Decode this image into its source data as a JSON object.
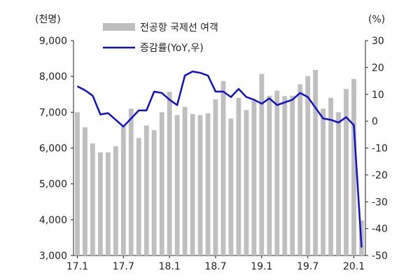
{
  "chart_data": {
    "type": "bar+line",
    "x": [
      "17.1",
      "17.2",
      "17.3",
      "17.4",
      "17.5",
      "17.6",
      "17.7",
      "17.8",
      "17.9",
      "17.10",
      "17.11",
      "17.12",
      "18.1",
      "18.2",
      "18.3",
      "18.4",
      "18.5",
      "18.6",
      "18.7",
      "18.8",
      "18.9",
      "18.10",
      "18.11",
      "18.12",
      "19.1",
      "19.2",
      "19.3",
      "19.4",
      "19.5",
      "19.6",
      "19.7",
      "19.8",
      "19.9",
      "19.10",
      "19.11",
      "19.12",
      "20.1",
      "20.2"
    ],
    "x_tick_labels": [
      "17.1",
      "17.7",
      "18.1",
      "18.7",
      "19.1",
      "19.7",
      "20.1"
    ],
    "y_left_unit": "(천명)",
    "y_right_unit": "(%)",
    "y_left_ticks": [
      "9,000",
      "8,000",
      "7,000",
      "6,000",
      "5,000",
      "4,000",
      "3,000"
    ],
    "y_right_ticks": [
      "30",
      "20",
      "10",
      "0",
      "-10",
      "-20",
      "-30",
      "-40",
      "-50"
    ],
    "y_left_lim": [
      3000,
      9000
    ],
    "y_right_lim": [
      -50,
      30
    ],
    "legend_position": "top",
    "grid": false,
    "series": [
      {
        "name": "전공항 국제선 여객",
        "type": "bar",
        "axis": "left",
        "color": "#bfbfbf",
        "values": [
          7000,
          6580,
          6130,
          5880,
          5880,
          6050,
          6600,
          7100,
          6280,
          6630,
          6500,
          7000,
          7570,
          6920,
          7150,
          6950,
          6920,
          6970,
          7360,
          7870,
          6820,
          7400,
          7060,
          7330,
          8070,
          7460,
          7600,
          7450,
          7460,
          7780,
          8010,
          8180,
          7100,
          7400,
          7000,
          7650,
          7930,
          3980
        ]
      },
      {
        "name": "증감률(YoY,우)",
        "type": "line",
        "axis": "right",
        "color": "#1010cc",
        "values": [
          13,
          11.5,
          9.5,
          2.5,
          3,
          0.5,
          -2,
          1,
          4,
          4,
          11,
          10.5,
          8,
          6,
          17,
          18.5,
          18,
          17,
          11,
          11,
          9,
          12,
          9,
          8,
          6.5,
          8.5,
          6,
          7,
          8,
          10.5,
          9,
          5,
          1,
          0.5,
          -0.5,
          1.5,
          -1.5,
          -47
        ]
      }
    ]
  }
}
